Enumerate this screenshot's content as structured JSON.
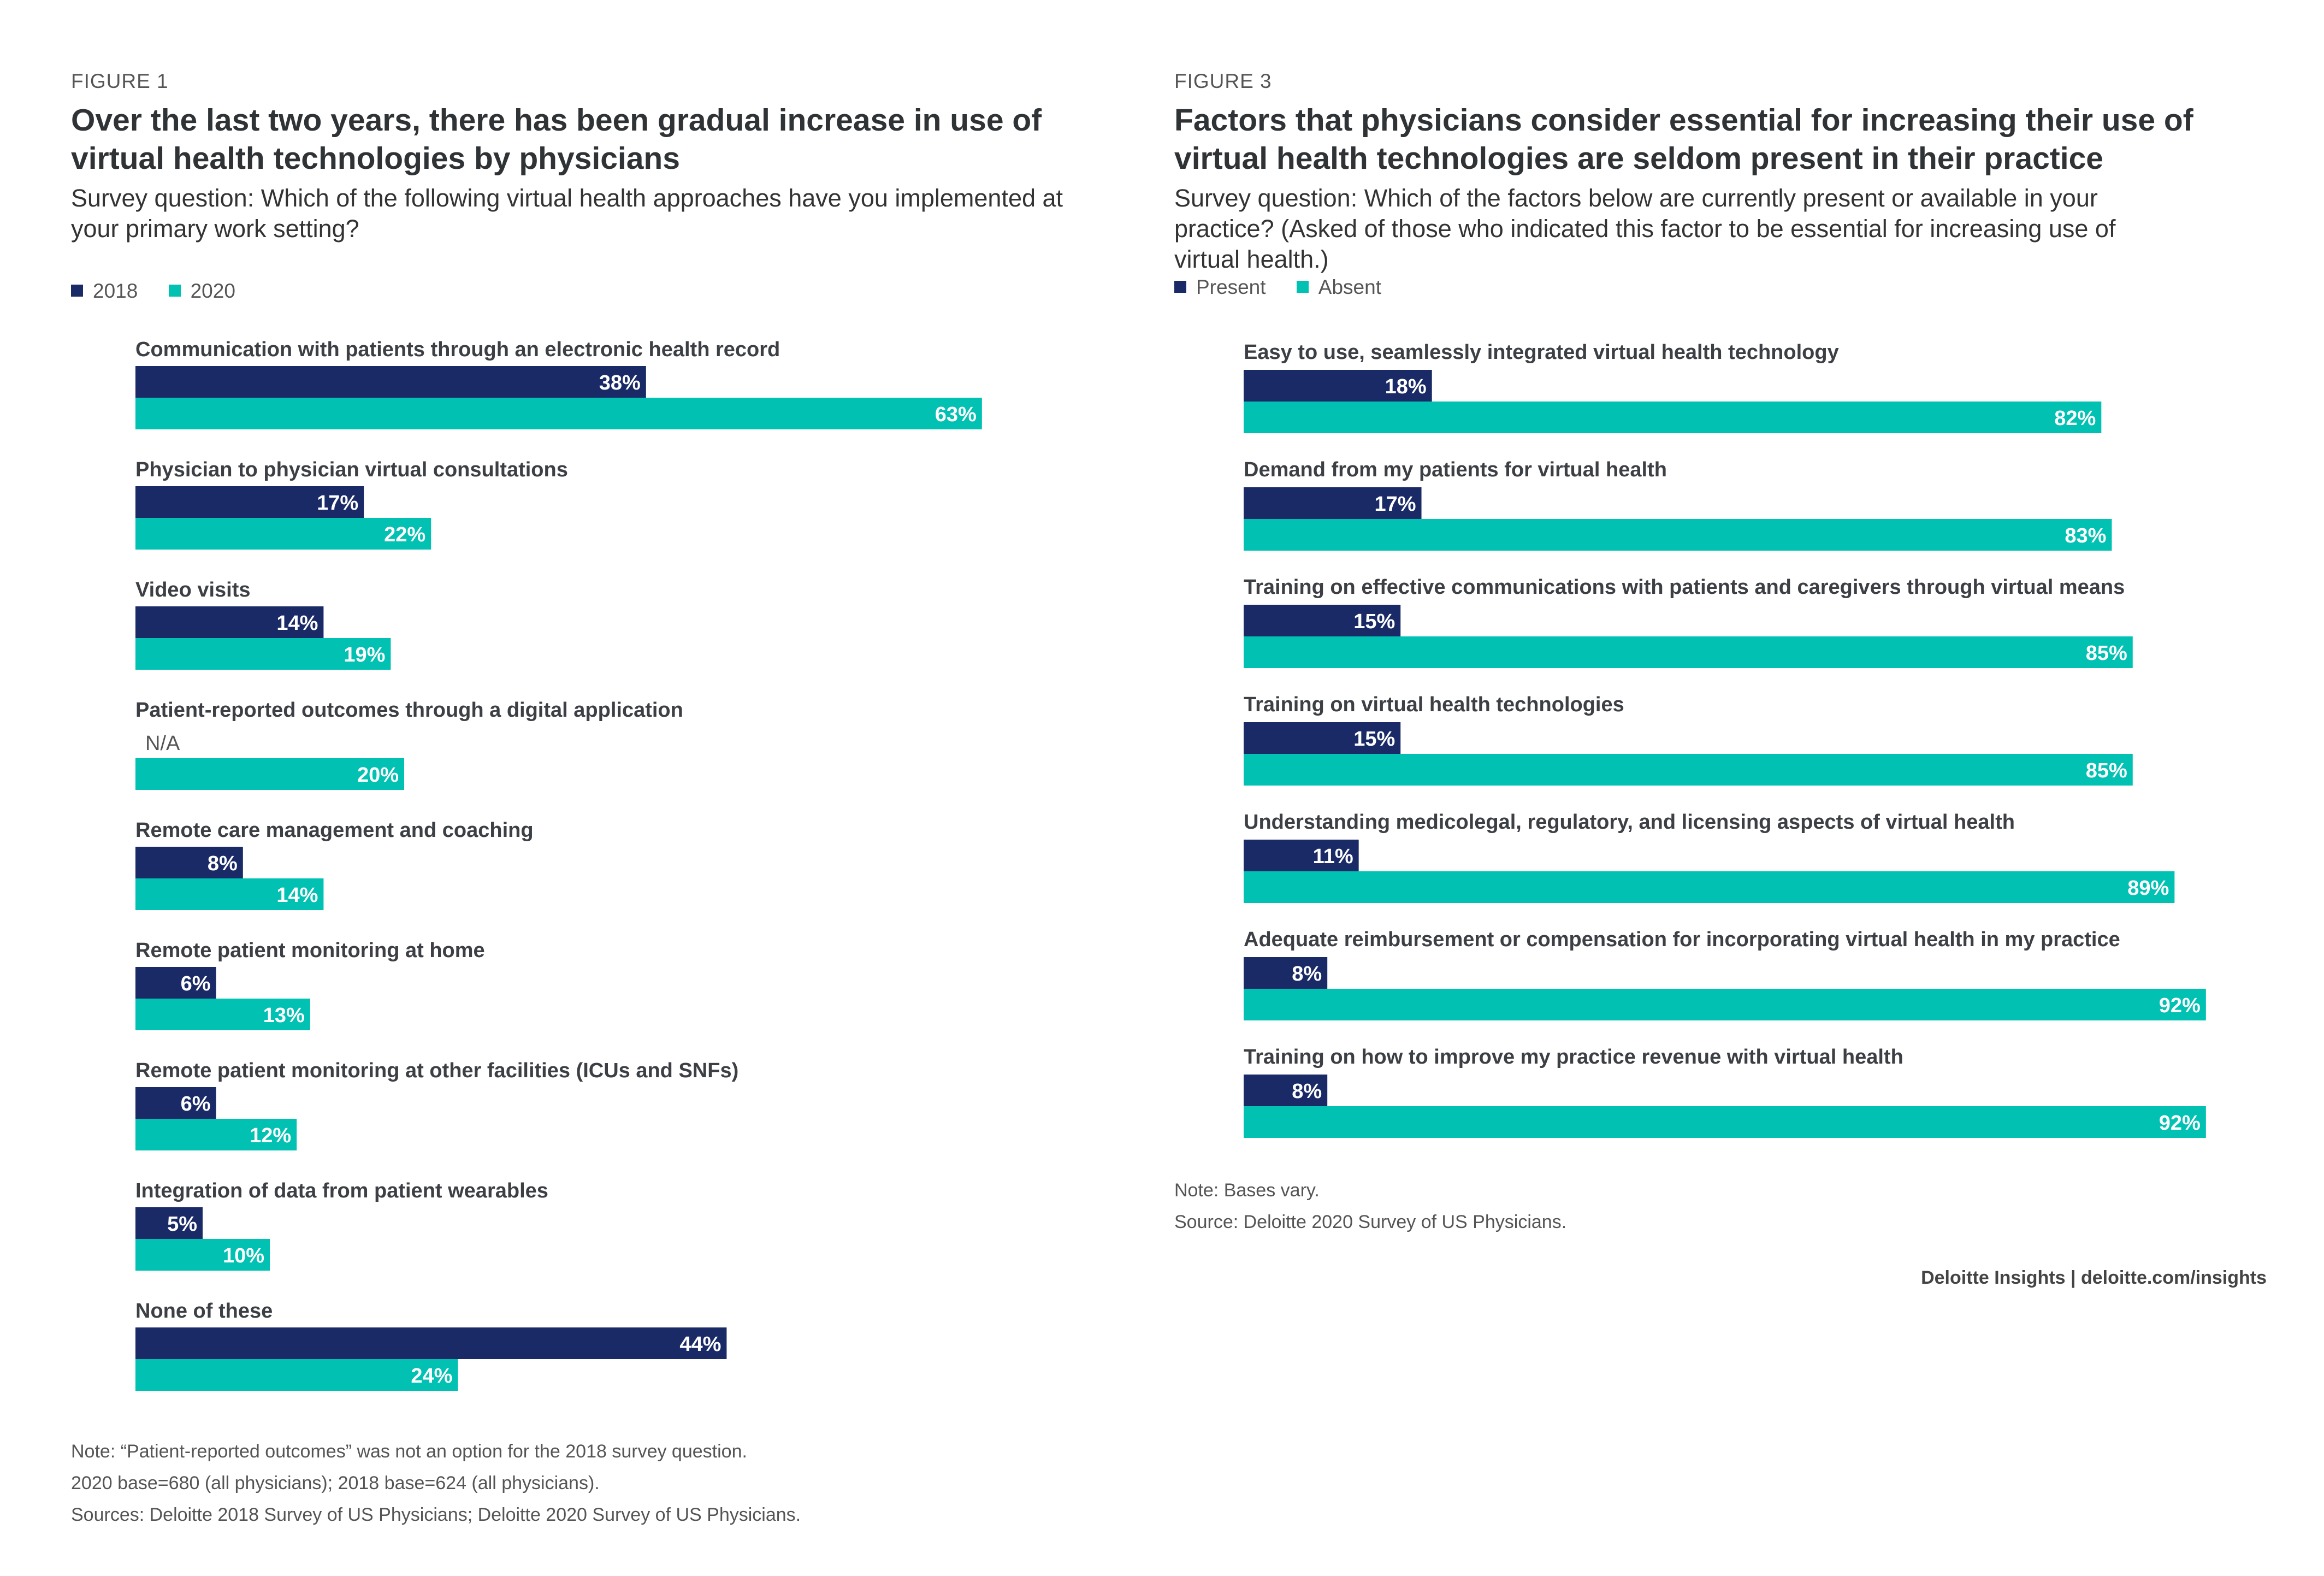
{
  "colors": {
    "dark": "#1a2a66",
    "teal": "#00c1b2",
    "label": "#3c3f44",
    "na": "#555555"
  },
  "figure1": {
    "label": "FIGURE 1",
    "title": "Over the last two years, there has been gradual increase in use of virtual health technologies by physicians",
    "question": "Survey question: Which of the following virtual health approaches have you implemented at your primary work setting?",
    "legend": [
      "2018",
      "2020"
    ],
    "notes": [
      "Note: “Patient-reported outcomes” was not an option for the 2018 survey question.",
      "2020 base=680 (all physicians); 2018 base=624 (all physicians).",
      "Sources: Deloitte 2018 Survey of US Physicians; Deloitte 2020 Survey of US Physicians."
    ]
  },
  "figure3": {
    "label": "FIGURE 3",
    "title": "Factors that physicians consider essential for increasing their use of virtual health technologies are seldom present in their practice",
    "question": "Survey question: Which of the factors below are currently present or available in your practice? (Asked of those who indicated this factor to be essential for increasing use of virtual health.)",
    "legend": [
      "Present",
      "Absent"
    ],
    "notes": [
      "Note: Bases vary.",
      "Source: Deloitte 2020 Survey of US Physicians."
    ],
    "credit": "Deloitte Insights | deloitte.com/insights"
  },
  "chart_data": [
    {
      "type": "bar",
      "orientation": "horizontal",
      "categories": [
        "Communication with patients through an electronic health record",
        "Physician to physician virtual consultations",
        "Video visits",
        "Patient-reported outcomes through a digital application",
        "Remote care management and coaching",
        "Remote patient monitoring at home",
        "Remote patient monitoring at other facilities (ICUs and SNFs)",
        "Integration of data from patient wearables",
        "None of these"
      ],
      "series": [
        {
          "name": "2018",
          "values": [
            38,
            17,
            14,
            null,
            8,
            6,
            6,
            5,
            44
          ],
          "na_label": "N/A"
        },
        {
          "name": "2020",
          "values": [
            63,
            22,
            19,
            20,
            14,
            13,
            12,
            10,
            24
          ]
        }
      ],
      "value_suffix": "%",
      "grid": false,
      "legend_position": "top-left"
    },
    {
      "type": "bar",
      "orientation": "horizontal",
      "categories": [
        "Easy to use, seamlessly integrated virtual health technology",
        "Demand from my patients for virtual health",
        "Training on effective communications with patients and caregivers through virtual means",
        "Training on virtual health technologies",
        "Understanding medicolegal, regulatory, and licensing aspects of virtual health",
        "Adequate reimbursement or compensation for incorporating virtual health in my practice",
        "Training on how to improve my practice revenue with virtual health"
      ],
      "series": [
        {
          "name": "Present",
          "values": [
            18,
            17,
            15,
            15,
            11,
            8,
            8
          ]
        },
        {
          "name": "Absent",
          "values": [
            82,
            83,
            85,
            85,
            89,
            92,
            92
          ]
        }
      ],
      "value_suffix": "%",
      "grid": false,
      "legend_position": "top-left"
    }
  ]
}
